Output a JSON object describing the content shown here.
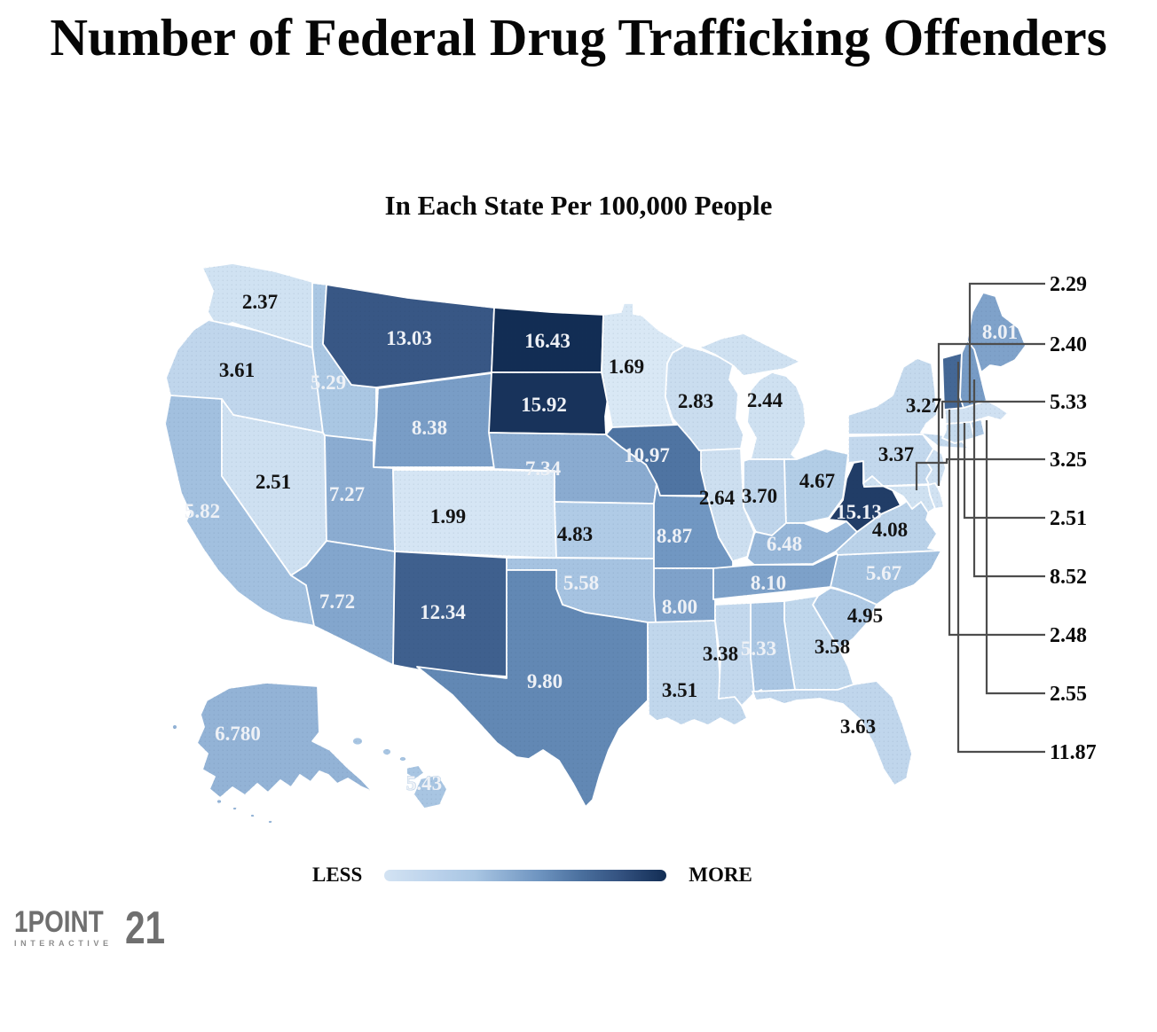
{
  "title": "Number of Federal Drug Trafficking Offenders",
  "subtitle": "In Each State Per 100,000 People",
  "legend": {
    "less_label": "LESS",
    "more_label": "MORE",
    "min_color": "#d3e3f3",
    "max_color": "#122d54"
  },
  "logo": {
    "part1": "1POINT",
    "part2": "21",
    "tagline": "INTERACTIVE"
  },
  "leader_labels": [
    "2.29",
    "2.40",
    "5.33",
    "3.25",
    "2.51",
    "8.52",
    "2.48",
    "2.55",
    "11.87"
  ],
  "states": [
    {
      "abbr": "WA",
      "name": "Washington",
      "value": "2.37"
    },
    {
      "abbr": "OR",
      "name": "Oregon",
      "value": "3.61"
    },
    {
      "abbr": "CA",
      "name": "California",
      "value": "5.82"
    },
    {
      "abbr": "NV",
      "name": "Nevada",
      "value": "2.51"
    },
    {
      "abbr": "ID",
      "name": "Idaho",
      "value": "5.29"
    },
    {
      "abbr": "MT",
      "name": "Montana",
      "value": "13.03"
    },
    {
      "abbr": "WY",
      "name": "Wyoming",
      "value": "8.38"
    },
    {
      "abbr": "UT",
      "name": "Utah",
      "value": "7.27"
    },
    {
      "abbr": "CO",
      "name": "Colorado",
      "value": "1.99"
    },
    {
      "abbr": "AZ",
      "name": "Arizona",
      "value": "7.72"
    },
    {
      "abbr": "NM",
      "name": "New Mexico",
      "value": "12.34"
    },
    {
      "abbr": "ND",
      "name": "North Dakota",
      "value": "16.43"
    },
    {
      "abbr": "SD",
      "name": "South Dakota",
      "value": "15.92"
    },
    {
      "abbr": "NE",
      "name": "Nebraska",
      "value": "7.34"
    },
    {
      "abbr": "KS",
      "name": "Kansas",
      "value": "4.83"
    },
    {
      "abbr": "OK",
      "name": "Oklahoma",
      "value": "5.58"
    },
    {
      "abbr": "TX",
      "name": "Texas",
      "value": "9.80"
    },
    {
      "abbr": "MN",
      "name": "Minnesota",
      "value": "1.69"
    },
    {
      "abbr": "IA",
      "name": "Iowa",
      "value": "10.97"
    },
    {
      "abbr": "MO",
      "name": "Missouri",
      "value": "8.87"
    },
    {
      "abbr": "AR",
      "name": "Arkansas",
      "value": "8.00"
    },
    {
      "abbr": "LA",
      "name": "Louisiana",
      "value": "3.51"
    },
    {
      "abbr": "WI",
      "name": "Wisconsin",
      "value": "2.83"
    },
    {
      "abbr": "IL",
      "name": "Illinois",
      "value": "2.64"
    },
    {
      "abbr": "MI",
      "name": "Michigan",
      "value": "2.44"
    },
    {
      "abbr": "IN",
      "name": "Indiana",
      "value": "3.70"
    },
    {
      "abbr": "OH",
      "name": "Ohio",
      "value": "4.67"
    },
    {
      "abbr": "KY",
      "name": "Kentucky",
      "value": "6.48"
    },
    {
      "abbr": "TN",
      "name": "Tennessee",
      "value": "8.10"
    },
    {
      "abbr": "MS",
      "name": "Mississippi",
      "value": "3.38"
    },
    {
      "abbr": "AL",
      "name": "Alabama",
      "value": "5.33"
    },
    {
      "abbr": "GA",
      "name": "Georgia",
      "value": "3.58"
    },
    {
      "abbr": "FL",
      "name": "Florida",
      "value": "3.63"
    },
    {
      "abbr": "SC",
      "name": "South Carolina",
      "value": "4.95"
    },
    {
      "abbr": "NC",
      "name": "North Carolina",
      "value": "5.67"
    },
    {
      "abbr": "VA",
      "name": "Virginia",
      "value": "4.08"
    },
    {
      "abbr": "WV",
      "name": "West Virginia",
      "value": "15.13"
    },
    {
      "abbr": "PA",
      "name": "Pennsylvania",
      "value": "3.37"
    },
    {
      "abbr": "NY",
      "name": "New York",
      "value": "3.27"
    },
    {
      "abbr": "ME",
      "name": "Maine",
      "value": "8.01"
    },
    {
      "abbr": "AK",
      "name": "Alaska",
      "value": "6.780"
    },
    {
      "abbr": "HI",
      "name": "Hawaii",
      "value": "5.43"
    }
  ],
  "chart_data": {
    "type": "choropleth-map",
    "title": "Number of Federal Drug Trafficking Offenders",
    "subtitle": "In Each State Per 100,000 People",
    "unit": "offenders per 100,000 people",
    "legend": {
      "position": "bottom",
      "low": "LESS",
      "high": "MORE"
    },
    "value_range": [
      1.69,
      16.43
    ],
    "state_values": {
      "WA": 2.37,
      "OR": 3.61,
      "CA": 5.82,
      "NV": 2.51,
      "ID": 5.29,
      "MT": 13.03,
      "WY": 8.38,
      "UT": 7.27,
      "CO": 1.99,
      "AZ": 7.72,
      "NM": 12.34,
      "ND": 16.43,
      "SD": 15.92,
      "NE": 7.34,
      "KS": 4.83,
      "OK": 5.58,
      "TX": 9.8,
      "MN": 1.69,
      "IA": 10.97,
      "MO": 8.87,
      "AR": 8.0,
      "LA": 3.51,
      "WI": 2.83,
      "IL": 2.64,
      "MI": 2.44,
      "IN": 3.7,
      "OH": 4.67,
      "KY": 6.48,
      "TN": 8.1,
      "MS": 3.38,
      "AL": 5.33,
      "GA": 3.58,
      "FL": 3.63,
      "SC": 4.95,
      "NC": 5.67,
      "VA": 4.08,
      "WV": 15.13,
      "PA": 3.37,
      "NY": 3.27,
      "ME": 8.01,
      "AK": 6.78,
      "HI": 5.43
    },
    "callout_values": [
      2.29,
      2.4,
      5.33,
      3.25,
      2.51,
      8.52,
      2.48,
      2.55,
      11.87
    ]
  }
}
